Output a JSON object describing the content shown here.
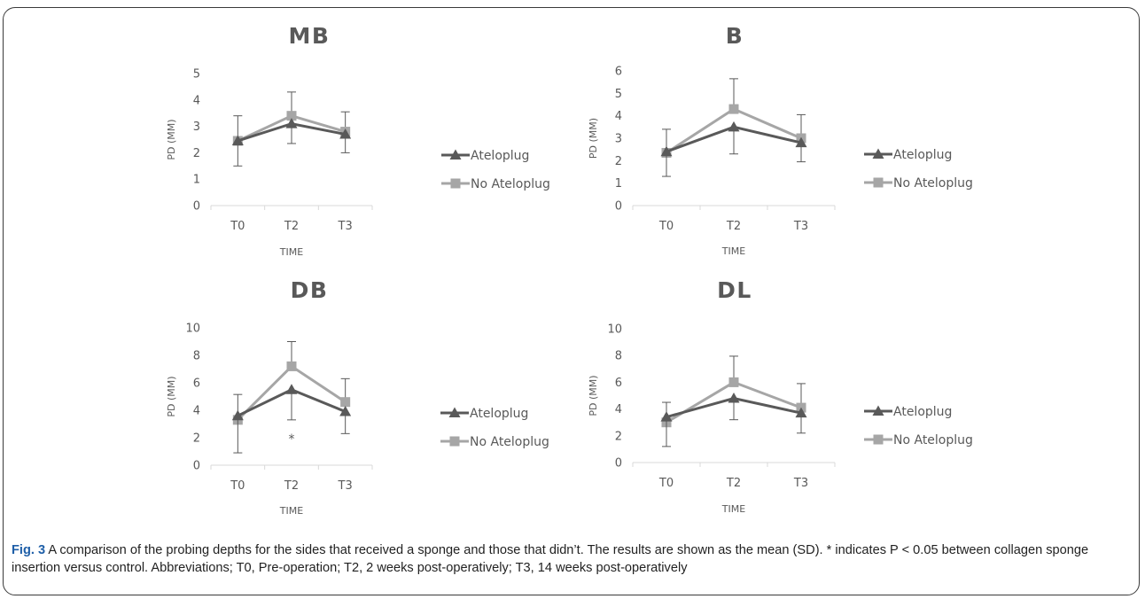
{
  "caption": {
    "label": "Fig. 3",
    "text": " A comparison of the probing depths for the sides that received a sponge and those that didn’t. The results are shown as the mean (SD). * indicates P < 0.05 between collagen sponge insertion versus control. Abbreviations; T0, Pre-operation; T2, 2 weeks post-operatively; T3, 14 weeks post-operatively"
  },
  "colors": {
    "ateloplug": "#595959",
    "no_ateloplug": "#a6a6a6",
    "text": "#595959"
  },
  "chart_data": [
    {
      "type": "line",
      "title": "MB",
      "xlabel": "TIME",
      "ylabel": "PD (MM)",
      "categories": [
        "T0",
        "T2",
        "T3"
      ],
      "ylim": [
        0,
        5
      ],
      "yticks": [
        0,
        1,
        2,
        3,
        4,
        5
      ],
      "series": [
        {
          "name": "Ateloplug",
          "marker": "triangle",
          "values": [
            2.45,
            3.1,
            2.7
          ],
          "err_low": [
            0.95,
            0.75,
            0.7
          ],
          "err_high": [
            0,
            0,
            0
          ]
        },
        {
          "name": "No Ateloplug",
          "marker": "square",
          "values": [
            2.45,
            3.4,
            2.8
          ],
          "err_low": [
            0,
            0,
            0
          ],
          "err_high": [
            0.95,
            0.9,
            0.75
          ]
        }
      ],
      "annotations": [],
      "legend": "right",
      "grid": false
    },
    {
      "type": "line",
      "title": "B",
      "xlabel": "TIME",
      "ylabel": "PD (MM)",
      "categories": [
        "T0",
        "T2",
        "T3"
      ],
      "ylim": [
        0,
        6
      ],
      "yticks": [
        0,
        1,
        2,
        3,
        4,
        5,
        6
      ],
      "series": [
        {
          "name": "Ateloplug",
          "marker": "triangle",
          "values": [
            2.4,
            3.5,
            2.8
          ],
          "err_low": [
            1.1,
            1.2,
            0.85
          ],
          "err_high": [
            0,
            0,
            0
          ]
        },
        {
          "name": "No Ateloplug",
          "marker": "square",
          "values": [
            2.35,
            4.3,
            3.0
          ],
          "err_low": [
            0,
            0,
            0
          ],
          "err_high": [
            1.05,
            1.35,
            1.05
          ]
        }
      ],
      "annotations": [],
      "legend": "right",
      "grid": false
    },
    {
      "type": "line",
      "title": "DB",
      "xlabel": "TIME",
      "ylabel": "PD (MM)",
      "categories": [
        "T0",
        "T2",
        "T3"
      ],
      "ylim": [
        0,
        10
      ],
      "yticks": [
        0,
        2,
        4,
        6,
        8,
        10
      ],
      "series": [
        {
          "name": "Ateloplug",
          "marker": "triangle",
          "values": [
            3.6,
            5.5,
            3.9
          ],
          "err_low": [
            2.7,
            2.2,
            1.6
          ],
          "err_high": [
            0,
            0,
            0
          ]
        },
        {
          "name": "No Ateloplug",
          "marker": "square",
          "values": [
            3.3,
            7.2,
            4.6
          ],
          "err_low": [
            0,
            0,
            0
          ],
          "err_high": [
            1.85,
            1.8,
            1.7
          ]
        }
      ],
      "annotations": [
        {
          "category": "T2",
          "y": 2.0,
          "text": "*"
        }
      ],
      "legend": "right",
      "grid": false
    },
    {
      "type": "line",
      "title": "DL",
      "xlabel": "TIME",
      "ylabel": "PD (MM)",
      "categories": [
        "T0",
        "T2",
        "T3"
      ],
      "ylim": [
        0,
        10
      ],
      "yticks": [
        0,
        2,
        4,
        6,
        8,
        10
      ],
      "series": [
        {
          "name": "Ateloplug",
          "marker": "triangle",
          "values": [
            3.4,
            4.8,
            3.7
          ],
          "err_low": [
            2.2,
            1.6,
            1.5
          ],
          "err_high": [
            0,
            0,
            0
          ]
        },
        {
          "name": "No Ateloplug",
          "marker": "square",
          "values": [
            3.0,
            6.0,
            4.1
          ],
          "err_low": [
            0,
            0,
            0
          ],
          "err_high": [
            1.5,
            1.95,
            1.8
          ]
        }
      ],
      "annotations": [],
      "legend": "right",
      "grid": false
    }
  ]
}
